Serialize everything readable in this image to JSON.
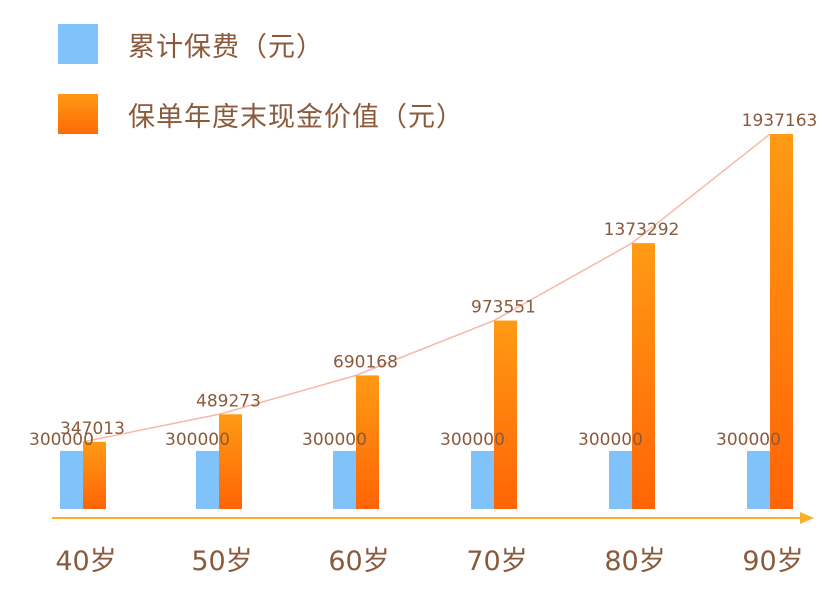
{
  "legend": {
    "items": [
      {
        "label": "累计保费（元）",
        "color": "#80c3fb"
      },
      {
        "label": "保单年度末现金价值（元）",
        "color": "#ff7a0a"
      }
    ]
  },
  "chart_data": {
    "type": "bar",
    "categories": [
      "40岁",
      "50岁",
      "60岁",
      "70岁",
      "80岁",
      "90岁"
    ],
    "series": [
      {
        "name": "累计保费（元）",
        "values": [
          300000,
          300000,
          300000,
          300000,
          300000,
          300000
        ],
        "color": "#80c3fb"
      },
      {
        "name": "保单年度末现金价值（元）",
        "values": [
          347013,
          489273,
          690168,
          973551,
          1373292,
          1937163
        ],
        "color": "#ff7a0a"
      }
    ],
    "trend_line": {
      "series": "保单年度末现金价值（元）",
      "color": "#f7b6a8"
    },
    "axis_color": "#f7b02b",
    "label_color": "#8a5a3c",
    "ylim": [
      0,
      1937163
    ],
    "legend_position": "top-left",
    "grid": false
  }
}
